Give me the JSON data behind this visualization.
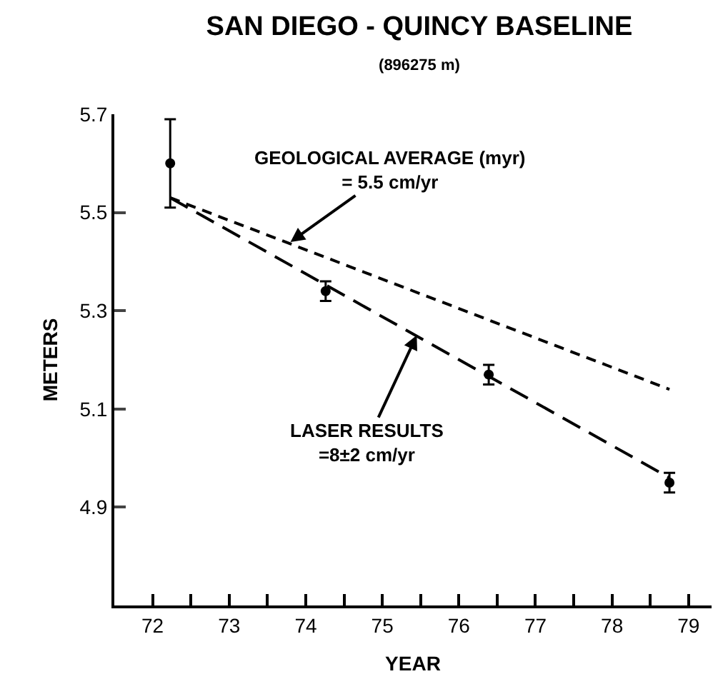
{
  "chart_data": {
    "type": "scatter",
    "title": "SAN DIEGO - QUINCY BASELINE",
    "subtitle": "(896275 m)",
    "xlabel": "YEAR",
    "ylabel": "METERS",
    "xlim": [
      71.5,
      79.3
    ],
    "ylim": [
      4.7,
      5.7
    ],
    "xticks": [
      72,
      73,
      74,
      75,
      76,
      77,
      78,
      79,
      {
        "value": 72.5,
        "label": null
      },
      {
        "value": 73.5,
        "label": null
      },
      {
        "value": 74.5,
        "label": null
      },
      {
        "value": 75.5,
        "label": null
      },
      {
        "value": 76.5,
        "label": null
      },
      {
        "value": 77.5,
        "label": null
      },
      {
        "value": 78.5,
        "label": null
      }
    ],
    "yticks": [
      4.9,
      5.1,
      5.3,
      5.5,
      5.7
    ],
    "series": [
      {
        "type": "scatter",
        "color": "#000000",
        "marker": "circle",
        "x": [
          72.23,
          74.26,
          76.39,
          78.75
        ],
        "values": [
          5.6,
          5.34,
          5.17,
          4.95
        ],
        "errors": [
          0.09,
          0.02,
          0.02,
          0.02
        ]
      },
      {
        "type": "line",
        "color": "#000000",
        "marker": "none",
        "line_style": "dashed",
        "x": [
          72.23,
          78.75
        ],
        "values": [
          5.53,
          4.96
        ]
      },
      {
        "type": "line",
        "color": "#000000",
        "marker": "none",
        "line_style": "dotted",
        "x": [
          72.23,
          78.75
        ],
        "values": [
          5.53,
          5.14
        ]
      }
    ],
    "annotations": [
      {
        "text": "GEOLOGICAL AVERAGE (myr)\n= 5.5 cm/yr",
        "x": 73.8,
        "y": 5.44
      },
      {
        "text": "LASER RESULTS\n=8±2 cm/yr",
        "x": 75.45,
        "y": 5.25
      }
    ]
  }
}
